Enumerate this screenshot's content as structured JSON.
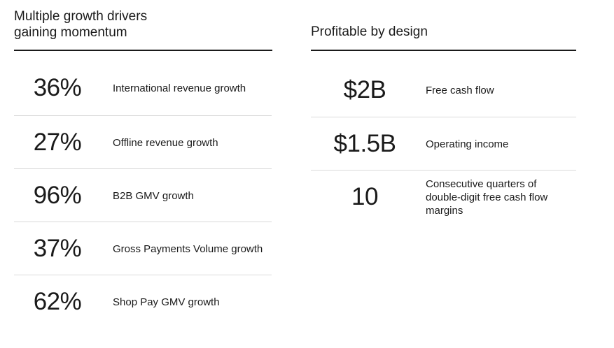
{
  "left": {
    "title": "Multiple growth drivers\ngaining momentum",
    "rows": [
      {
        "metric": "36%",
        "label": "International revenue growth"
      },
      {
        "metric": "27%",
        "label": "Offline revenue growth"
      },
      {
        "metric": "96%",
        "label": "B2B GMV growth"
      },
      {
        "metric": "37%",
        "label": "Gross Payments Volume growth"
      },
      {
        "metric": "62%",
        "label": "Shop Pay GMV growth"
      }
    ]
  },
  "right": {
    "title": "Profitable by design",
    "rows": [
      {
        "metric": "$2B",
        "label": "Free cash flow"
      },
      {
        "metric": "$1.5B",
        "label": "Operating income"
      },
      {
        "metric": "10",
        "label": "Consecutive quarters of double-digit free cash flow margins"
      }
    ]
  }
}
